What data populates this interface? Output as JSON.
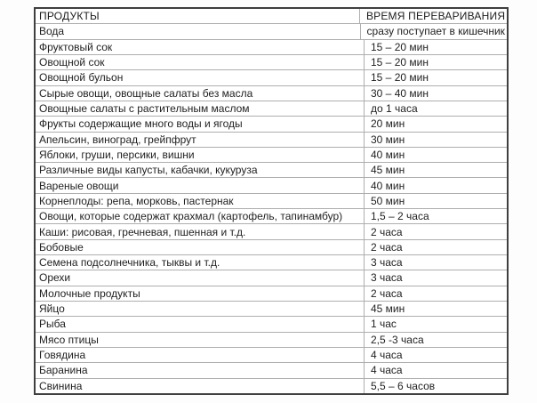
{
  "table": {
    "columns": [
      "ПРОДУКТЫ",
      "ВРЕМЯ ПЕРЕВАРИВАНИЯ"
    ],
    "rows": [
      {
        "product": "Вода",
        "time": "сразу поступает в кишечник"
      },
      {
        "product": "Фруктовый сок",
        "time": "15 – 20 мин"
      },
      {
        "product": "Овощной сок",
        "time": "15 – 20 мин"
      },
      {
        "product": "Овощной бульон",
        "time": "15 – 20 мин"
      },
      {
        "product": "Сырые овощи, овощные салаты без масла",
        "time": "30 – 40 мин"
      },
      {
        "product": "Овощные салаты с растительным маслом",
        "time": "до 1 часа"
      },
      {
        "product": "Фрукты содержащие много воды и ягоды",
        "time": "20 мин"
      },
      {
        "product": "Апельсин, виноград, грейпфрут",
        "time": "30 мин"
      },
      {
        "product": "Яблоки, груши, персики, вишни",
        "time": "40 мин"
      },
      {
        "product": "Различные виды капусты, кабачки, кукуруза",
        "time": "45 мин"
      },
      {
        "product": "Вареные овощи",
        "time": "40 мин"
      },
      {
        "product": "Корнеплоды: репа, морковь, пастернак",
        "time": "50 мин"
      },
      {
        "product": "Овощи, которые содержат крахмал (картофель, тапинамбур)",
        "time": "1,5 – 2 часа"
      },
      {
        "product": "Каши: рисовая, гречневая, пшенная и т.д.",
        "time": "2 часа"
      },
      {
        "product": "Бобовые",
        "time": "2 часа"
      },
      {
        "product": "Семена подсолнечника, тыквы и т.д.",
        "time": "3 часа"
      },
      {
        "product": "Орехи",
        "time": "3 часа"
      },
      {
        "product": "Молочные продукты",
        "time": "2 часа"
      },
      {
        "product": "Яйцо",
        "time": "45 мин"
      },
      {
        "product": "Рыба",
        "time": "1 час"
      },
      {
        "product": "Мясо птицы",
        "time": "2,5 -3 часа"
      },
      {
        "product": "Говядина",
        "time": "4 часа"
      },
      {
        "product": "Баранина",
        "time": "4 часа"
      },
      {
        "product": "Свинина",
        "time": "5,5 – 6 часов"
      }
    ],
    "colors": {
      "outer_border": "#3f3f3f",
      "inner_border": "#aeaeae",
      "text": "#1f1f1f",
      "background": "#ffffff"
    }
  }
}
